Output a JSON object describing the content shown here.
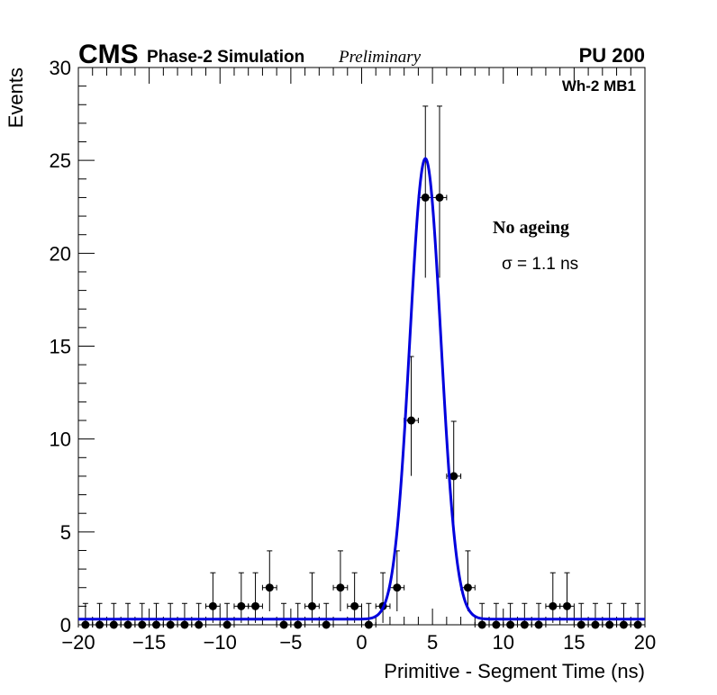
{
  "header": {
    "experiment": "CMS",
    "simulation": "Phase-2 Simulation",
    "status": "Preliminary",
    "pileup": "PU 200",
    "station": "Wh-2 MB1"
  },
  "annotations": {
    "condition": "No ageing",
    "sigma_text": "σ = 1.1 ns"
  },
  "chart_data": {
    "type": "scatter",
    "title": "",
    "xlabel": "Primitive - Segment Time (ns)",
    "ylabel": "Events",
    "xlim": [
      -20,
      20
    ],
    "ylim": [
      0,
      30
    ],
    "x_ticks": [
      -20,
      -15,
      -10,
      -5,
      0,
      5,
      10,
      15,
      20
    ],
    "y_ticks": [
      0,
      5,
      10,
      15,
      20,
      25,
      30
    ],
    "x_tick_labels": [
      "−20",
      "−15",
      "−10",
      "−5",
      "0",
      "5",
      "10",
      "15",
      "20"
    ],
    "y_tick_labels": [
      "0",
      "5",
      "10",
      "15",
      "20",
      "25",
      "30"
    ],
    "bin_width": 1,
    "grid": false,
    "series": [
      {
        "name": "",
        "style": "markers-with-errors",
        "color": "#000000",
        "x": [
          -19.5,
          -18.5,
          -17.5,
          -16.5,
          -15.5,
          -14.5,
          -13.5,
          -12.5,
          -11.5,
          -10.5,
          -9.5,
          -8.5,
          -7.5,
          -6.5,
          -5.5,
          -4.5,
          -3.5,
          -2.5,
          -1.5,
          -0.5,
          0.5,
          1.5,
          2.5,
          3.5,
          4.5,
          5.5,
          6.5,
          7.5,
          8.5,
          9.5,
          10.5,
          11.5,
          12.5,
          13.5,
          14.5,
          15.5,
          16.5,
          17.5,
          18.5,
          19.5
        ],
        "y": [
          0,
          0,
          0,
          0,
          0,
          0,
          0,
          0,
          0,
          1,
          0,
          1,
          1,
          2,
          0,
          0,
          1,
          0,
          2,
          1,
          0,
          1,
          2,
          11,
          23,
          23,
          8,
          2,
          0,
          0,
          0,
          0,
          0,
          1,
          1,
          0,
          0,
          0,
          0,
          0
        ]
      }
    ],
    "fit": {
      "name": "",
      "color": "#0000dd",
      "model": "gaussian + constant",
      "mean": 4.5,
      "sigma": 1.1,
      "amplitude": 24.8,
      "constant": 0.3
    }
  }
}
